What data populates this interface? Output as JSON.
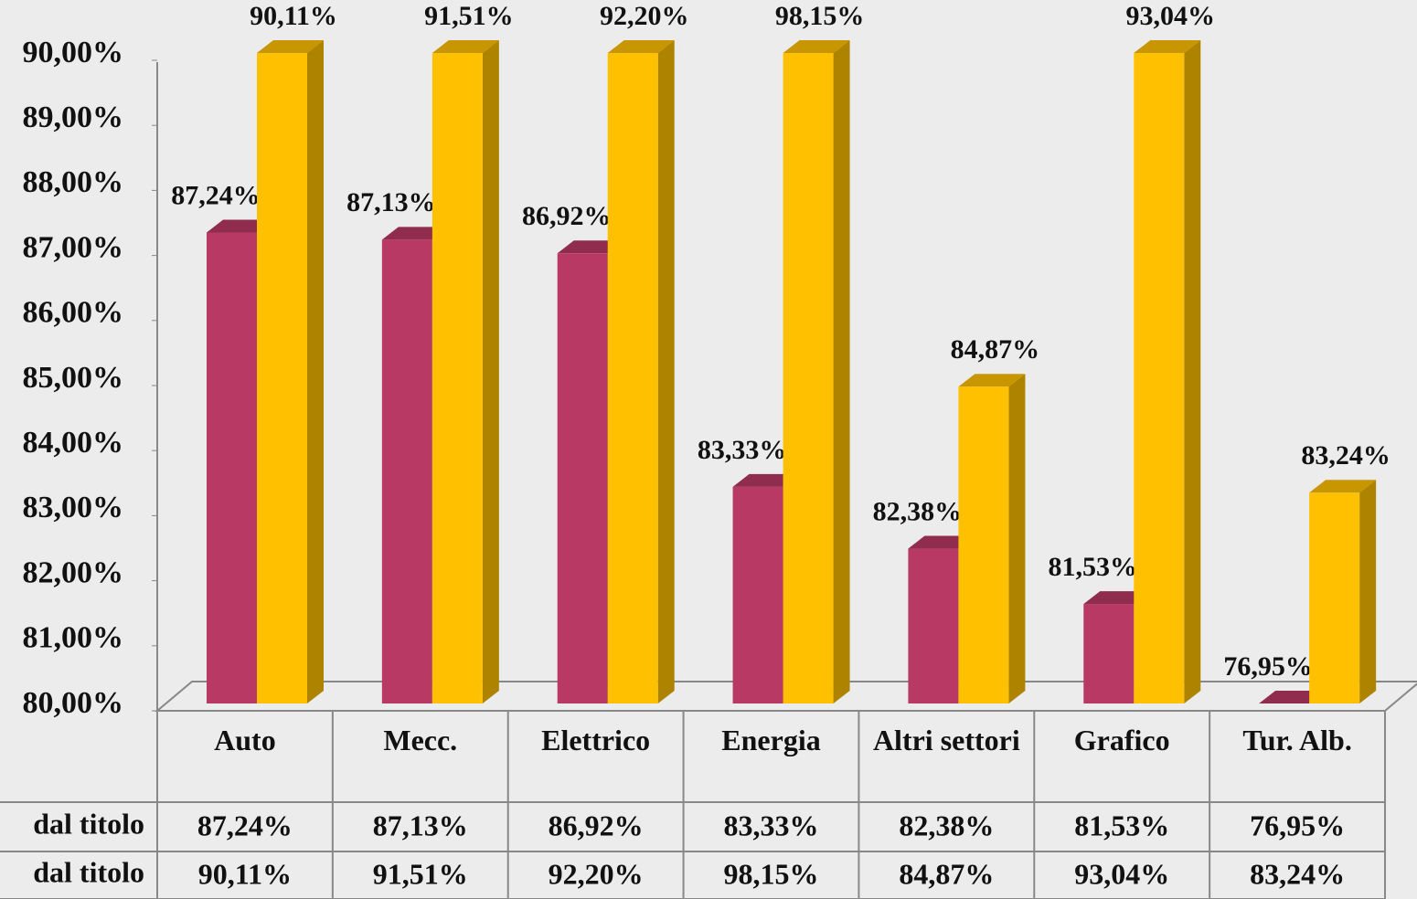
{
  "chart_data": {
    "type": "bar",
    "categories": [
      "Auto",
      "Mecc.",
      "Elettrico",
      "Energia",
      "Altri settori",
      "Grafico",
      "Tur. Alb."
    ],
    "series": [
      {
        "name": "dal titolo",
        "color": "#b83a64",
        "values": [
          87.24,
          87.13,
          86.92,
          83.33,
          82.38,
          81.53,
          76.95
        ],
        "value_labels": [
          "87,24%",
          "87,13%",
          "86,92%",
          "83,33%",
          "82,38%",
          "81,53%",
          "76,95%"
        ]
      },
      {
        "name": "dal titolo",
        "color": "#ffc000",
        "values": [
          90.11,
          91.51,
          92.2,
          98.15,
          84.87,
          93.04,
          83.24
        ],
        "value_labels": [
          "90,11%",
          "91,51%",
          "92,20%",
          "98,15%",
          "84,87%",
          "93,04%",
          "83,24%"
        ]
      }
    ],
    "ylim": [
      80,
      90
    ],
    "yticks": [
      {
        "value": 80,
        "label": "80,00%"
      },
      {
        "value": 81,
        "label": "81,00%"
      },
      {
        "value": 82,
        "label": "82,00%"
      },
      {
        "value": 83,
        "label": "83,00%"
      },
      {
        "value": 84,
        "label": "84,00%"
      },
      {
        "value": 85,
        "label": "85,00%"
      },
      {
        "value": 86,
        "label": "86,00%"
      },
      {
        "value": 87,
        "label": "87,00%"
      },
      {
        "value": 88,
        "label": "88,00%"
      },
      {
        "value": 89,
        "label": "89,00%"
      },
      {
        "value": 90,
        "label": "90,00%"
      }
    ]
  }
}
